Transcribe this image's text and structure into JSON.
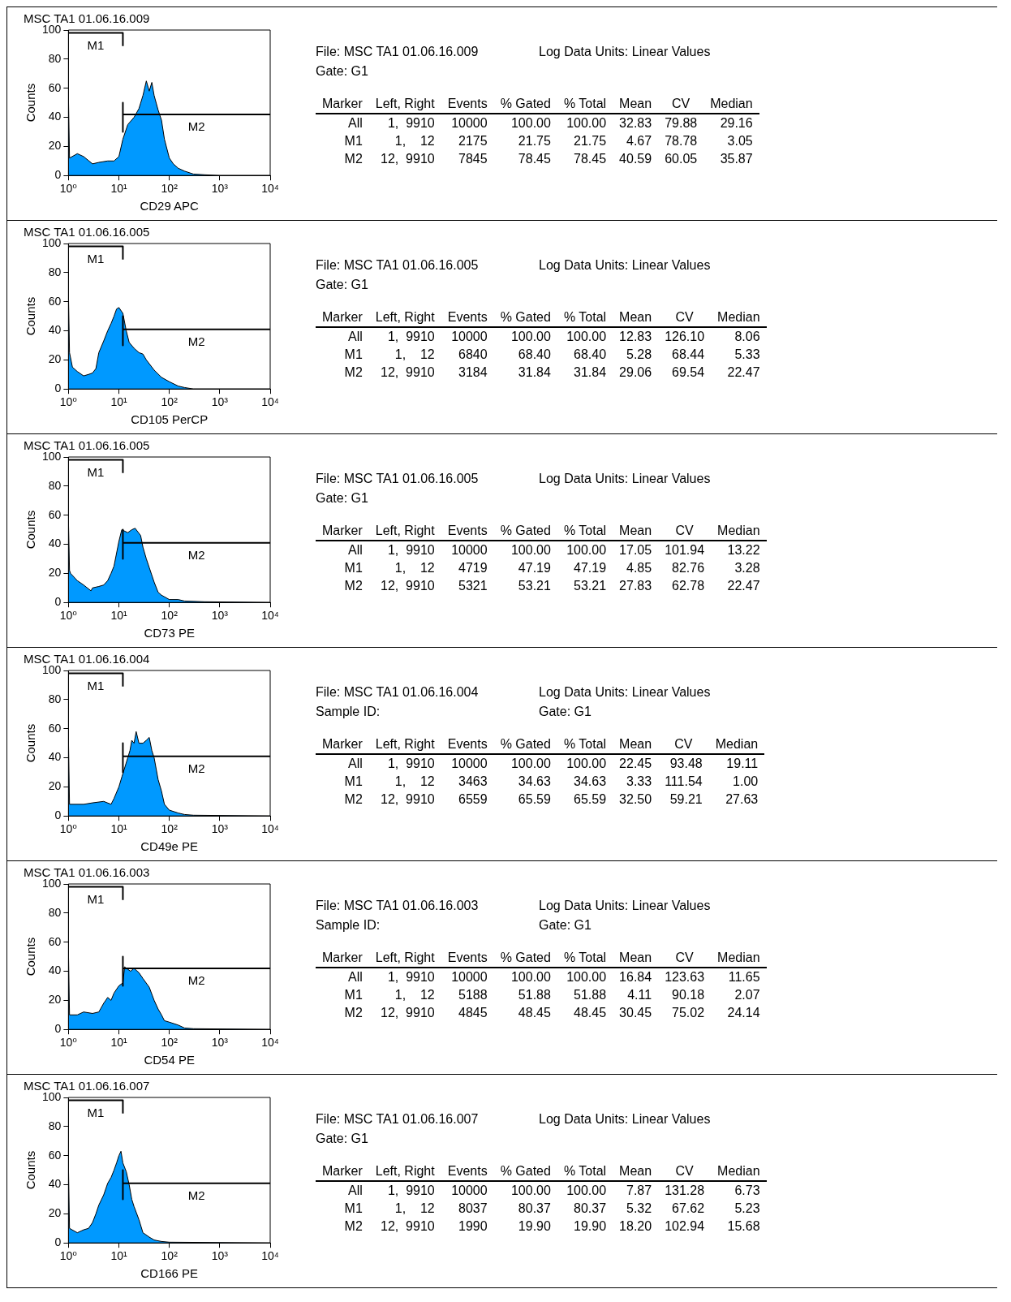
{
  "chart_data": [
    {
      "type": "area",
      "title": "MSC TA1 01.06.16.009",
      "xlabel": "CD29 APC",
      "ylabel": "Counts",
      "log": "x",
      "xlim": [
        1,
        10000
      ],
      "ylim": [
        0,
        100
      ],
      "xticks": [
        {
          "value": 1,
          "label": "10⁰"
        },
        {
          "value": 10,
          "label": "10¹"
        },
        {
          "value": 100,
          "label": "10²"
        },
        {
          "value": 1000,
          "label": "10³"
        },
        {
          "value": 10000,
          "label": "10⁴"
        }
      ],
      "yticks": [
        0,
        20,
        40,
        60,
        80,
        100
      ],
      "series": [
        {
          "type": "area",
          "color": "#0099ff",
          "x": [
            1,
            1.05,
            1.5,
            2,
            3,
            4,
            6,
            8,
            10,
            12,
            15,
            20,
            25,
            30,
            35,
            40,
            45,
            50,
            60,
            70,
            80,
            100,
            120,
            150,
            200,
            300,
            500,
            1000,
            10000
          ],
          "values": [
            55,
            12,
            15,
            13,
            8,
            9,
            10,
            10,
            13,
            25,
            35,
            40,
            46,
            55,
            65,
            58,
            64,
            55,
            45,
            38,
            25,
            12,
            8,
            5,
            3,
            1,
            0.5,
            0,
            0
          ]
        },
        {
          "type": "line",
          "name": "M1",
          "color": "#000000",
          "x": [
            12,
            12,
            1
          ],
          "values": [
            89,
            98,
            98
          ]
        },
        {
          "type": "line",
          "name": "M2",
          "color": "#000000",
          "x": [
            12,
            12,
            12,
            10000
          ],
          "values": [
            50,
            30,
            42,
            42
          ]
        }
      ]
    },
    {
      "type": "other",
      "title": "File: MSC TA1 01.06.16.009",
      "subtitle": "Gate: G1",
      "annotations": [
        "Log Data Units: Linear Values"
      ],
      "legend_title": "Marker",
      "categories": [
        "Left, Right",
        "Events",
        "% Gated",
        "% Total",
        "Mean",
        "CV",
        "Median"
      ],
      "series": [
        {
          "name": "All",
          "values": [
            null,
            10000,
            100,
            100,
            32.83,
            79.88,
            29.16
          ],
          "value_labels": [
            "1,  9910",
            "10000",
            "100.00",
            "100.00",
            "32.83",
            "79.88",
            "29.16"
          ]
        },
        {
          "name": "M1",
          "values": [
            null,
            2175,
            21.75,
            21.75,
            4.67,
            78.78,
            3.05
          ],
          "value_labels": [
            "1,    12",
            "2175",
            "21.75",
            "21.75",
            "4.67",
            "78.78",
            "3.05"
          ]
        },
        {
          "name": "M2",
          "values": [
            null,
            7845,
            78.45,
            78.45,
            40.59,
            60.05,
            35.87
          ],
          "value_labels": [
            "12,  9910",
            "7845",
            "78.45",
            "78.45",
            "40.59",
            "60.05",
            "35.87"
          ]
        }
      ]
    },
    {
      "type": "area",
      "title": "MSC TA1 01.06.16.005",
      "xlabel": "CD105 PerCP",
      "ylabel": "Counts",
      "log": "x",
      "xlim": [
        1,
        10000
      ],
      "ylim": [
        0,
        100
      ],
      "xticks": [
        {
          "value": 1,
          "label": "10⁰"
        },
        {
          "value": 10,
          "label": "10¹"
        },
        {
          "value": 100,
          "label": "10²"
        },
        {
          "value": 1000,
          "label": "10³"
        },
        {
          "value": 10000,
          "label": "10⁴"
        }
      ],
      "yticks": [
        0,
        20,
        40,
        60,
        80,
        100
      ],
      "series": [
        {
          "type": "area",
          "color": "#0099ff",
          "x": [
            1,
            1.05,
            1.2,
            1.5,
            2,
            2.5,
            3,
            3.5,
            4,
            5,
            6,
            7,
            8,
            9,
            10,
            12,
            14,
            16,
            20,
            25,
            30,
            35,
            50,
            70,
            100,
            150,
            200,
            300,
            10000
          ],
          "values": [
            66,
            25,
            15,
            12,
            9,
            10,
            11,
            14,
            25,
            33,
            40,
            45,
            50,
            55,
            56,
            52,
            40,
            32,
            28,
            25,
            24,
            20,
            13,
            8,
            5,
            2,
            1,
            0,
            0
          ]
        },
        {
          "type": "line",
          "name": "M1",
          "color": "#000000",
          "x": [
            12,
            12,
            1
          ],
          "values": [
            89,
            98,
            98
          ]
        },
        {
          "type": "line",
          "name": "M2",
          "color": "#000000",
          "x": [
            12,
            12,
            12,
            10000
          ],
          "values": [
            50,
            30,
            41,
            41
          ]
        }
      ]
    },
    {
      "type": "other",
      "title": "File: MSC TA1 01.06.16.005",
      "subtitle": "Gate: G1",
      "annotations": [
        "Log Data Units: Linear Values"
      ],
      "legend_title": "Marker",
      "categories": [
        "Left, Right",
        "Events",
        "% Gated",
        "% Total",
        "Mean",
        "CV",
        "Median"
      ],
      "series": [
        {
          "name": "All",
          "values": [
            null,
            10000,
            100,
            100,
            12.83,
            126.1,
            8.06
          ],
          "value_labels": [
            "1,  9910",
            "10000",
            "100.00",
            "100.00",
            "12.83",
            "126.10",
            "8.06"
          ]
        },
        {
          "name": "M1",
          "values": [
            null,
            6840,
            68.4,
            68.4,
            5.28,
            68.44,
            5.33
          ],
          "value_labels": [
            "1,    12",
            "6840",
            "68.40",
            "68.40",
            "5.28",
            "68.44",
            "5.33"
          ]
        },
        {
          "name": "M2",
          "values": [
            null,
            3184,
            31.84,
            31.84,
            29.06,
            69.54,
            22.47
          ],
          "value_labels": [
            "12,  9910",
            "3184",
            "31.84",
            "31.84",
            "29.06",
            "69.54",
            "22.47"
          ]
        }
      ]
    },
    {
      "type": "area",
      "title": "MSC TA1 01.06.16.005",
      "xlabel": "CD73 PE",
      "ylabel": "Counts",
      "log": "x",
      "xlim": [
        1,
        10000
      ],
      "ylim": [
        0,
        100
      ],
      "xticks": [
        {
          "value": 1,
          "label": "10⁰"
        },
        {
          "value": 10,
          "label": "10¹"
        },
        {
          "value": 100,
          "label": "10²"
        },
        {
          "value": 1000,
          "label": "10³"
        },
        {
          "value": 10000,
          "label": "10⁴"
        }
      ],
      "yticks": [
        0,
        20,
        40,
        60,
        80,
        100
      ],
      "series": [
        {
          "type": "area",
          "color": "#0099ff",
          "x": [
            1,
            1.05,
            1.1,
            1.5,
            2,
            2.8,
            3,
            4,
            5,
            6,
            7,
            8,
            10,
            11.4,
            15,
            18,
            21,
            27,
            30,
            35,
            40,
            50,
            60,
            70,
            100,
            150,
            200,
            500,
            10000
          ],
          "values": [
            57,
            22,
            20,
            15,
            12,
            8,
            10,
            11,
            12,
            15,
            20,
            25,
            42,
            50,
            48,
            50,
            51,
            46,
            38,
            30,
            24,
            14,
            7,
            5,
            2,
            2,
            1,
            0.5,
            0
          ]
        },
        {
          "type": "line",
          "name": "M1",
          "color": "#000000",
          "x": [
            12,
            12,
            1
          ],
          "values": [
            89,
            98,
            98
          ]
        },
        {
          "type": "line",
          "name": "M2",
          "color": "#000000",
          "x": [
            12,
            12,
            12,
            10000
          ],
          "values": [
            50,
            30,
            41,
            41
          ]
        }
      ]
    },
    {
      "type": "other",
      "title": "File: MSC TA1 01.06.16.005",
      "subtitle": "Gate: G1",
      "annotations": [
        "Log Data Units: Linear Values"
      ],
      "legend_title": "Marker",
      "categories": [
        "Left, Right",
        "Events",
        "% Gated",
        "% Total",
        "Mean",
        "CV",
        "Median"
      ],
      "series": [
        {
          "name": "All",
          "values": [
            null,
            10000,
            100,
            100,
            17.05,
            101.94,
            13.22
          ],
          "value_labels": [
            "1,  9910",
            "10000",
            "100.00",
            "100.00",
            "17.05",
            "101.94",
            "13.22"
          ]
        },
        {
          "name": "M1",
          "values": [
            null,
            4719,
            47.19,
            47.19,
            4.85,
            82.76,
            3.28
          ],
          "value_labels": [
            "1,    12",
            "4719",
            "47.19",
            "47.19",
            "4.85",
            "82.76",
            "3.28"
          ]
        },
        {
          "name": "M2",
          "values": [
            null,
            5321,
            53.21,
            53.21,
            27.83,
            62.78,
            22.47
          ],
          "value_labels": [
            "12,  9910",
            "5321",
            "53.21",
            "53.21",
            "27.83",
            "62.78",
            "22.47"
          ]
        }
      ]
    },
    {
      "type": "area",
      "title": "MSC TA1 01.06.16.004",
      "xlabel": "CD49e PE",
      "ylabel": "Counts",
      "log": "x",
      "xlim": [
        1,
        10000
      ],
      "ylim": [
        0,
        100
      ],
      "xticks": [
        {
          "value": 1,
          "label": "10⁰"
        },
        {
          "value": 10,
          "label": "10¹"
        },
        {
          "value": 100,
          "label": "10²"
        },
        {
          "value": 1000,
          "label": "10³"
        },
        {
          "value": 10000,
          "label": "10⁴"
        }
      ],
      "yticks": [
        0,
        20,
        40,
        60,
        80,
        100
      ],
      "series": [
        {
          "type": "area",
          "color": "#0099ff",
          "x": [
            1,
            1.05,
            2,
            3,
            5,
            7,
            8,
            10,
            11.5,
            15,
            16.6,
            18,
            20,
            22,
            25,
            30,
            35,
            40,
            45,
            50,
            60,
            70,
            80,
            100,
            150,
            200,
            300,
            10000
          ],
          "values": [
            54,
            8,
            8,
            9,
            10,
            8,
            12,
            20,
            27,
            40,
            45,
            52,
            50,
            58,
            50,
            50,
            52,
            54,
            45,
            40,
            25,
            17,
            8,
            4,
            2,
            1,
            0.5,
            0
          ]
        },
        {
          "type": "line",
          "name": "M1",
          "color": "#000000",
          "x": [
            12,
            12,
            1
          ],
          "values": [
            89,
            98,
            98
          ]
        },
        {
          "type": "line",
          "name": "M2",
          "color": "#000000",
          "x": [
            12,
            12,
            12,
            10000
          ],
          "values": [
            50,
            30,
            41,
            41
          ]
        }
      ]
    },
    {
      "type": "other",
      "title": "File: MSC TA1 01.06.16.004",
      "subtitle": "Gate: G1",
      "annotations": [
        "Log Data Units: Linear Values",
        "Sample ID:"
      ],
      "legend_title": "Marker",
      "categories": [
        "Left, Right",
        "Events",
        "% Gated",
        "% Total",
        "Mean",
        "CV",
        "Median"
      ],
      "series": [
        {
          "name": "All",
          "values": [
            null,
            10000,
            100,
            100,
            22.45,
            93.48,
            19.11
          ],
          "value_labels": [
            "1,  9910",
            "10000",
            "100.00",
            "100.00",
            "22.45",
            "93.48",
            "19.11"
          ]
        },
        {
          "name": "M1",
          "values": [
            null,
            3463,
            34.63,
            34.63,
            3.33,
            111.54,
            1
          ],
          "value_labels": [
            "1,    12",
            "3463",
            "34.63",
            "34.63",
            "3.33",
            "111.54",
            "1.00"
          ]
        },
        {
          "name": "M2",
          "values": [
            null,
            6559,
            65.59,
            65.59,
            32.5,
            59.21,
            27.63
          ],
          "value_labels": [
            "12,  9910",
            "6559",
            "65.59",
            "65.59",
            "32.50",
            "59.21",
            "27.63"
          ]
        }
      ]
    },
    {
      "type": "area",
      "title": "MSC TA1 01.06.16.003",
      "xlabel": "CD54 PE",
      "ylabel": "Counts",
      "log": "x",
      "xlim": [
        1,
        10000
      ],
      "ylim": [
        0,
        100
      ],
      "xticks": [
        {
          "value": 1,
          "label": "10⁰"
        },
        {
          "value": 10,
          "label": "10¹"
        },
        {
          "value": 100,
          "label": "10²"
        },
        {
          "value": 1000,
          "label": "10³"
        },
        {
          "value": 10000,
          "label": "10⁴"
        }
      ],
      "yticks": [
        0,
        20,
        40,
        60,
        80,
        100
      ],
      "series": [
        {
          "type": "area",
          "color": "#0099ff",
          "x": [
            1,
            1.05,
            1.5,
            2,
            3,
            4,
            5,
            6,
            7,
            8,
            10,
            12,
            13,
            17,
            20,
            25,
            30,
            40,
            50,
            60,
            70,
            80,
            100,
            150,
            200,
            300,
            10000
          ],
          "values": [
            55,
            10,
            10,
            12,
            11,
            12,
            18,
            22,
            20,
            25,
            30,
            32,
            43,
            40,
            42,
            39,
            35,
            29,
            20,
            14,
            10,
            6,
            5,
            3,
            1,
            0.5,
            0
          ]
        },
        {
          "type": "line",
          "name": "M1",
          "color": "#000000",
          "x": [
            12,
            12,
            1
          ],
          "values": [
            89,
            98,
            98
          ]
        },
        {
          "type": "line",
          "name": "M2",
          "color": "#000000",
          "x": [
            12,
            12,
            12,
            10000
          ],
          "values": [
            50,
            30,
            42,
            42
          ]
        }
      ]
    },
    {
      "type": "other",
      "title": "File: MSC TA1 01.06.16.003",
      "subtitle": "Gate: G1",
      "annotations": [
        "Log Data Units: Linear Values",
        "Sample ID:"
      ],
      "legend_title": "Marker",
      "categories": [
        "Left, Right",
        "Events",
        "% Gated",
        "% Total",
        "Mean",
        "CV",
        "Median"
      ],
      "series": [
        {
          "name": "All",
          "values": [
            null,
            10000,
            100,
            100,
            16.84,
            123.63,
            11.65
          ],
          "value_labels": [
            "1,  9910",
            "10000",
            "100.00",
            "100.00",
            "16.84",
            "123.63",
            "11.65"
          ]
        },
        {
          "name": "M1",
          "values": [
            null,
            5188,
            51.88,
            51.88,
            4.11,
            90.18,
            2.07
          ],
          "value_labels": [
            "1,    12",
            "5188",
            "51.88",
            "51.88",
            "4.11",
            "90.18",
            "2.07"
          ]
        },
        {
          "name": "M2",
          "values": [
            null,
            4845,
            48.45,
            48.45,
            30.45,
            75.02,
            24.14
          ],
          "value_labels": [
            "12,  9910",
            "4845",
            "48.45",
            "48.45",
            "30.45",
            "75.02",
            "24.14"
          ]
        }
      ]
    },
    {
      "type": "area",
      "title": "MSC TA1 01.06.16.007",
      "xlabel": "CD166 PE",
      "ylabel": "Counts",
      "log": "x",
      "xlim": [
        1,
        10000
      ],
      "ylim": [
        0,
        100
      ],
      "xticks": [
        {
          "value": 1,
          "label": "10⁰"
        },
        {
          "value": 10,
          "label": "10¹"
        },
        {
          "value": 100,
          "label": "10²"
        },
        {
          "value": 1000,
          "label": "10³"
        },
        {
          "value": 10000,
          "label": "10⁴"
        }
      ],
      "yticks": [
        0,
        20,
        40,
        60,
        80,
        100
      ],
      "series": [
        {
          "type": "area",
          "color": "#0099ff",
          "x": [
            1,
            1.05,
            1.5,
            2,
            2.5,
            3,
            3.5,
            4,
            5,
            6,
            7,
            8,
            9,
            10,
            11,
            12,
            14,
            16,
            18,
            20,
            25,
            30,
            40,
            50,
            70,
            100,
            10000
          ],
          "values": [
            54,
            10,
            7,
            9,
            10,
            14,
            20,
            26,
            33,
            41,
            45,
            50,
            55,
            60,
            63,
            55,
            49,
            40,
            30,
            25,
            16,
            7,
            4,
            2,
            1,
            0.5,
            0
          ]
        },
        {
          "type": "line",
          "name": "M1",
          "color": "#000000",
          "x": [
            12,
            12,
            1
          ],
          "values": [
            89,
            98,
            98
          ]
        },
        {
          "type": "line",
          "name": "M2",
          "color": "#000000",
          "x": [
            12,
            12,
            12,
            10000
          ],
          "values": [
            50,
            30,
            41,
            41
          ]
        }
      ]
    },
    {
      "type": "other",
      "title": "File: MSC TA1 01.06.16.007",
      "subtitle": "Gate: G1",
      "annotations": [
        "Log Data Units: Linear Values"
      ],
      "legend_title": "Marker",
      "categories": [
        "Left, Right",
        "Events",
        "% Gated",
        "% Total",
        "Mean",
        "CV",
        "Median"
      ],
      "series": [
        {
          "name": "All",
          "values": [
            null,
            10000,
            100,
            100,
            7.87,
            131.28,
            6.73
          ],
          "value_labels": [
            "1,  9910",
            "10000",
            "100.00",
            "100.00",
            "7.87",
            "131.28",
            "6.73"
          ]
        },
        {
          "name": "M1",
          "values": [
            null,
            8037,
            80.37,
            80.37,
            5.32,
            67.62,
            5.23
          ],
          "value_labels": [
            "1,    12",
            "8037",
            "80.37",
            "80.37",
            "5.32",
            "67.62",
            "5.23"
          ]
        },
        {
          "name": "M2",
          "values": [
            null,
            1990,
            19.9,
            19.9,
            18.2,
            102.94,
            15.68
          ],
          "value_labels": [
            "12,  9910",
            "1990",
            "19.90",
            "19.90",
            "18.20",
            "102.94",
            "15.68"
          ]
        }
      ]
    }
  ]
}
